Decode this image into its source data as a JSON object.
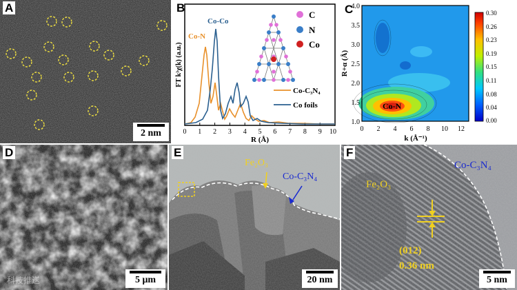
{
  "panels": {
    "A": {
      "label": "A",
      "scale": "2 nm"
    },
    "B": {
      "label": "B",
      "ylabel": "FT k³χ(k) (a.u.)",
      "xlabel": "R (Å)",
      "xticks": [
        "0",
        "1",
        "2",
        "3",
        "4",
        "5",
        "6",
        "7",
        "8",
        "9",
        "10"
      ],
      "annot_con": "Co-N",
      "annot_coco": "Co-Co",
      "legend": [
        "Co-C₃N₄",
        "Co foils"
      ],
      "atoms": [
        "C",
        "N",
        "Co"
      ],
      "colors": {
        "orange": "#e8902a",
        "blue": "#2a5f8f"
      }
    },
    "C": {
      "label": "C",
      "ylabel": "R+α (Å)",
      "xlabel": "k (Å⁻¹)",
      "xticks": [
        "0",
        "2",
        "4",
        "6",
        "8",
        "10",
        "12"
      ],
      "yticks": [
        "1.0",
        "1.5",
        "2.0",
        "2.5",
        "3.0",
        "3.5",
        "4.0"
      ],
      "colorbar": [
        "0.30",
        "0.26",
        "0.23",
        "0.19",
        "0.15",
        "0.11",
        "0.08",
        "0.04",
        "0.00"
      ],
      "annot": "Co-N"
    },
    "D": {
      "label": "D",
      "scale": "5 μm",
      "watermark": "科技推送"
    },
    "E": {
      "label": "E",
      "scale": "20 nm",
      "fe": "Fe₂O₃",
      "coc": "Co-C₃N₄"
    },
    "F": {
      "label": "F",
      "scale": "5 nm",
      "fe": "Fe₂O₃",
      "coc": "Co-C₃N₄",
      "plane": "(012)",
      "dspacing": "0.36 nm"
    }
  }
}
